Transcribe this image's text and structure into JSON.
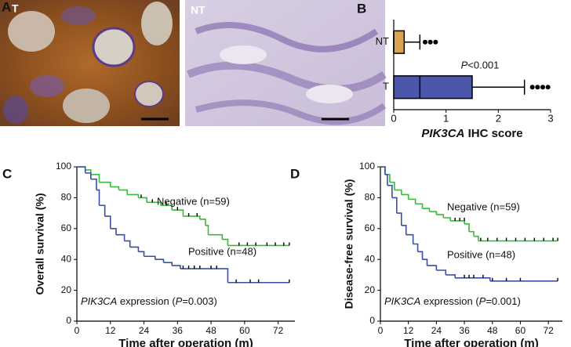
{
  "panel_labels": [
    "A",
    "B",
    "C",
    "D"
  ],
  "image_labels": [
    "T",
    "NT"
  ],
  "chart_data": [
    {
      "type": "boxplot",
      "orientation": "horizontal",
      "categories": [
        "NT",
        "T"
      ],
      "colors": [
        "#d9a352",
        "#4b57aa"
      ],
      "q1": [
        0,
        0
      ],
      "median": [
        0,
        0.5
      ],
      "q3": [
        0.2,
        1.5
      ],
      "whisker_low": [
        0,
        0
      ],
      "whisker_high": [
        0.5,
        2.5
      ],
      "outliers": [
        [
          0.6,
          0.7,
          0.8
        ],
        [
          2.65,
          2.75,
          2.85,
          2.95
        ]
      ],
      "annotation": [
        {
          "text": "P",
          "italic": true
        },
        {
          "text": "<0.001",
          "italic": false
        }
      ],
      "xlabel": [
        {
          "text": "PIK3CA",
          "italic": true
        },
        {
          "text": " IHC score",
          "italic": false
        }
      ],
      "xlim": [
        0,
        3
      ],
      "xticks": [
        0,
        1,
        2,
        3
      ]
    },
    {
      "type": "survival",
      "ylabel": "Overall survival (%)",
      "xlabel": "Time after operation (m)",
      "annotation": [
        {
          "text": "PIK3CA",
          "italic": true
        },
        {
          "text": " expression (",
          "italic": false
        },
        {
          "text": "P",
          "italic": true
        },
        {
          "text": "=0.003)",
          "italic": false
        }
      ],
      "xlim": [
        0,
        78
      ],
      "xticks": [
        0,
        12,
        24,
        36,
        48,
        60,
        72
      ],
      "ylim": [
        0,
        100
      ],
      "yticks": [
        0,
        20,
        40,
        60,
        80,
        100
      ],
      "series": [
        {
          "name": "Negative (n=59)",
          "color": "#3cb83c",
          "x": [
            0,
            3,
            5,
            8,
            12,
            15,
            18,
            22,
            25,
            30,
            34,
            38,
            44,
            46,
            47,
            52,
            54,
            76
          ],
          "values": [
            100,
            98,
            95,
            90,
            87,
            85,
            82,
            80,
            77,
            75,
            72,
            68,
            66,
            62,
            56,
            53,
            49,
            49
          ],
          "censor_x": [
            23,
            27,
            32,
            36,
            40,
            43,
            58,
            61,
            64,
            68,
            71,
            74,
            76
          ],
          "censor_values": [
            80,
            77,
            75,
            72,
            68,
            68,
            49,
            49,
            49,
            49,
            49,
            49,
            49
          ]
        },
        {
          "name": "Positive (n=48)",
          "color": "#3a4fa0",
          "x": [
            0,
            3,
            5,
            7,
            8,
            10,
            12,
            14,
            17,
            19,
            22,
            24,
            28,
            31,
            34,
            37,
            54,
            76
          ],
          "values": [
            100,
            96,
            92,
            85,
            75,
            68,
            60,
            56,
            52,
            48,
            45,
            42,
            40,
            38,
            36,
            34,
            25,
            25
          ],
          "censor_x": [
            38,
            40,
            42,
            44,
            48,
            50,
            57,
            62,
            65,
            76
          ],
          "censor_values": [
            34,
            34,
            34,
            34,
            34,
            34,
            25,
            25,
            25,
            25
          ]
        }
      ]
    },
    {
      "type": "survival",
      "ylabel": "Disease-free survival (%)",
      "xlabel": "Time after operation (m)",
      "annotation": [
        {
          "text": "PIK3CA",
          "italic": true
        },
        {
          "text": " expression (",
          "italic": false
        },
        {
          "text": "P",
          "italic": true
        },
        {
          "text": "=0.001)",
          "italic": false
        }
      ],
      "xlim": [
        0,
        78
      ],
      "xticks": [
        0,
        12,
        24,
        36,
        48,
        60,
        72
      ],
      "ylim": [
        0,
        100
      ],
      "yticks": [
        0,
        20,
        40,
        60,
        80,
        100
      ],
      "series": [
        {
          "name": "Negative (n=59)",
          "color": "#3cb83c",
          "x": [
            0,
            2,
            4,
            6,
            9,
            12,
            15,
            18,
            21,
            24,
            27,
            30,
            36,
            38,
            40,
            42,
            76
          ],
          "values": [
            100,
            95,
            90,
            85,
            82,
            79,
            76,
            73,
            71,
            69,
            67,
            65,
            63,
            58,
            55,
            52,
            52
          ],
          "censor_x": [
            32,
            34,
            36,
            43,
            46,
            50,
            54,
            58,
            62,
            66,
            70,
            74,
            76
          ],
          "censor_values": [
            65,
            65,
            65,
            52,
            52,
            52,
            52,
            52,
            52,
            52,
            52,
            52,
            52
          ]
        },
        {
          "name": "Positive (n=48)",
          "color": "#3a4fa0",
          "x": [
            0,
            2,
            3,
            5,
            7,
            9,
            11,
            14,
            16,
            18,
            20,
            24,
            28,
            32,
            47,
            76
          ],
          "values": [
            100,
            95,
            88,
            80,
            70,
            62,
            56,
            50,
            45,
            40,
            36,
            33,
            30,
            28,
            26,
            26
          ],
          "censor_x": [
            36,
            38,
            40,
            44,
            48,
            54,
            60,
            76
          ],
          "censor_values": [
            28,
            28,
            28,
            28,
            26,
            26,
            26,
            26
          ]
        }
      ]
    }
  ]
}
